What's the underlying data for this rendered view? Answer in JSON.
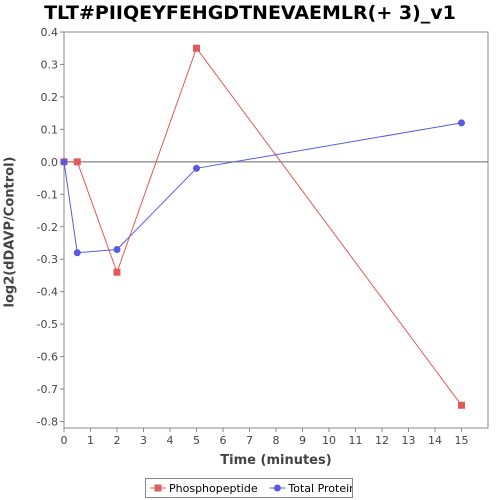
{
  "chart_data": {
    "type": "line",
    "title": "TLT#PIIQEYFEHGDTNEVAEMLR(+ 3)_v1",
    "xlabel": "Time (minutes)",
    "ylabel": "log2(dDAVP/Control)",
    "xlim": [
      0,
      16
    ],
    "ylim": [
      -0.82,
      0.4
    ],
    "xticks": [
      "0",
      "1",
      "2",
      "3",
      "4",
      "5",
      "6",
      "7",
      "8",
      "9",
      "10",
      "11",
      "12",
      "13",
      "14",
      "15"
    ],
    "yticks": [
      "0.4",
      "0.3",
      "0.2",
      "0.1",
      "0.0",
      "-0.1",
      "-0.2",
      "-0.3",
      "-0.4",
      "-0.5",
      "-0.6",
      "-0.7",
      "-0.8"
    ],
    "grid": false,
    "zero_line": true,
    "legend_position": "bottom",
    "series": [
      {
        "name": "Phosphopeptide",
        "color": "#e05a5a",
        "marker": "square",
        "x": [
          0,
          0.5,
          2,
          5,
          15
        ],
        "y": [
          0.0,
          0.0,
          -0.34,
          0.35,
          -0.75
        ]
      },
      {
        "name": "Total Protein",
        "color": "#5a5ae0",
        "marker": "circle",
        "x": [
          0,
          0.5,
          2,
          5,
          15
        ],
        "y": [
          0.0,
          -0.28,
          -0.27,
          -0.02,
          0.12
        ]
      }
    ]
  }
}
